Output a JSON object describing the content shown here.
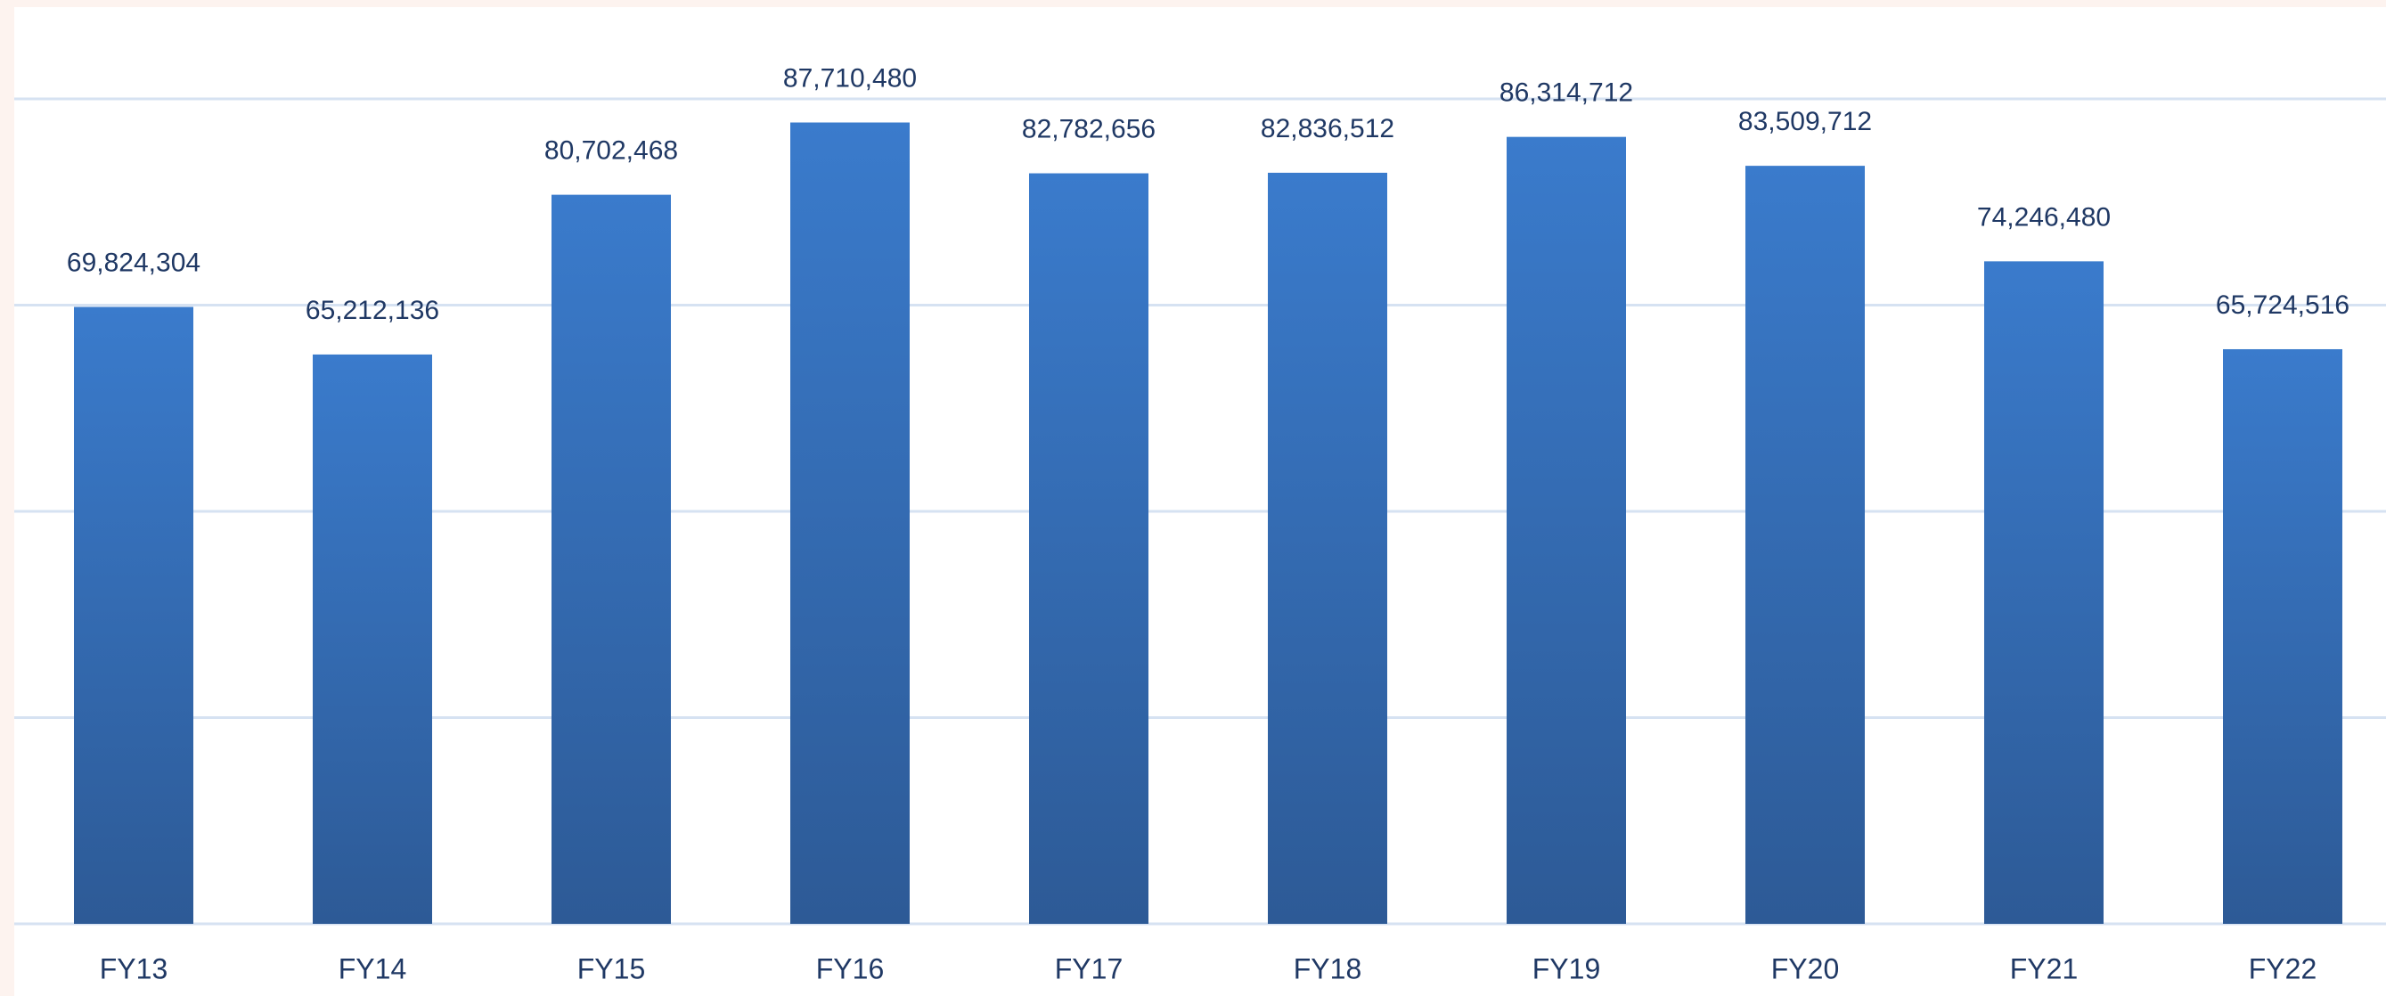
{
  "chart_data": {
    "type": "bar",
    "categories": [
      "FY13",
      "FY14",
      "FY15",
      "FY16",
      "FY17",
      "FY18",
      "FY19",
      "FY20",
      "FY21",
      "FY22"
    ],
    "values": [
      69824304,
      65212136,
      80702468,
      87710480,
      82782656,
      82836512,
      86314712,
      83509712,
      74246480,
      65724516
    ],
    "value_labels": [
      "69,824,304",
      "65,212,136",
      "80,702,468",
      "87,710,480",
      "82,782,656",
      "82,836,512",
      "86,314,712",
      "83,509,712",
      "74,246,480",
      "65,724,516"
    ],
    "color": "#3a7bcc",
    "ylim": [
      10000000,
      90000000
    ],
    "yticks": [
      10000000,
      30000000,
      50000000,
      70000000,
      90000000
    ],
    "grid": true
  }
}
